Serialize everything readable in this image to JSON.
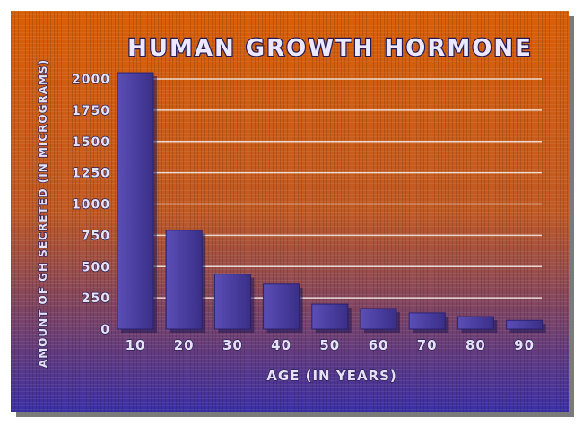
{
  "chart_data": {
    "type": "bar",
    "title": "HUMAN GROWTH HORMONE",
    "xlabel": "AGE (IN YEARS)",
    "ylabel": "AMOUNT OF GH SECRETED (IN MICROGRAMS)",
    "categories": [
      "10",
      "20",
      "30",
      "40",
      "50",
      "60",
      "70",
      "80",
      "90"
    ],
    "values": [
      2050,
      790,
      440,
      360,
      200,
      165,
      130,
      100,
      70
    ],
    "yticks": [
      "0",
      "250",
      "500",
      "750",
      "1000",
      "1250",
      "1500",
      "1750",
      "2000"
    ],
    "ylim": [
      0,
      2000
    ],
    "grid": true,
    "legend": "none"
  },
  "colors": {
    "background_top": "#d95f06",
    "background_mid": "#c25a24",
    "background_bottom": "#3b2fa6",
    "bar": "#4a3ea0",
    "bar_shadow": "#1d1552",
    "gridline": "#f2e8e0",
    "label_text": "#e6e2f4"
  }
}
